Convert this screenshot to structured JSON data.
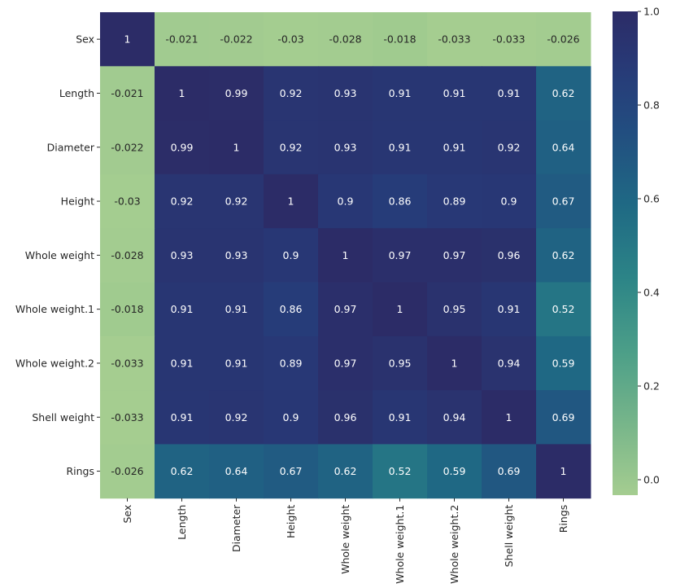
{
  "chart_data": {
    "type": "heatmap",
    "title": "",
    "xlabel": "",
    "ylabel": "",
    "row_labels": [
      "Sex",
      "Length",
      "Diameter",
      "Height",
      "Whole weight",
      "Whole weight.1",
      "Whole weight.2",
      "Shell weight",
      "Rings"
    ],
    "col_labels": [
      "Sex",
      "Length",
      "Diameter",
      "Height",
      "Whole weight",
      "Whole weight.1",
      "Whole weight.2",
      "Shell weight",
      "Rings"
    ],
    "values": [
      [
        1,
        -0.021,
        -0.022,
        -0.03,
        -0.028,
        -0.018,
        -0.033,
        -0.033,
        -0.026
      ],
      [
        -0.021,
        1,
        0.99,
        0.92,
        0.93,
        0.91,
        0.91,
        0.91,
        0.62
      ],
      [
        -0.022,
        0.99,
        1,
        0.92,
        0.93,
        0.91,
        0.91,
        0.92,
        0.64
      ],
      [
        -0.03,
        0.92,
        0.92,
        1,
        0.9,
        0.86,
        0.89,
        0.9,
        0.67
      ],
      [
        -0.028,
        0.93,
        0.93,
        0.9,
        1,
        0.97,
        0.97,
        0.96,
        0.62
      ],
      [
        -0.018,
        0.91,
        0.91,
        0.86,
        0.97,
        1,
        0.95,
        0.91,
        0.52
      ],
      [
        -0.033,
        0.91,
        0.91,
        0.89,
        0.97,
        0.95,
        1,
        0.94,
        0.59
      ],
      [
        -0.033,
        0.91,
        0.92,
        0.9,
        0.96,
        0.91,
        0.94,
        1,
        0.69
      ],
      [
        -0.026,
        0.62,
        0.64,
        0.67,
        0.62,
        0.52,
        0.59,
        0.69,
        1
      ]
    ],
    "colormap": "crest",
    "colorbar": {
      "vmin": -0.033,
      "vmax": 1.0,
      "ticks": [
        0.0,
        0.2,
        0.4,
        0.6,
        0.8,
        1.0
      ],
      "tick_labels": [
        "0.0",
        "0.2",
        "0.4",
        "0.6",
        "0.8",
        "1.0"
      ]
    }
  }
}
